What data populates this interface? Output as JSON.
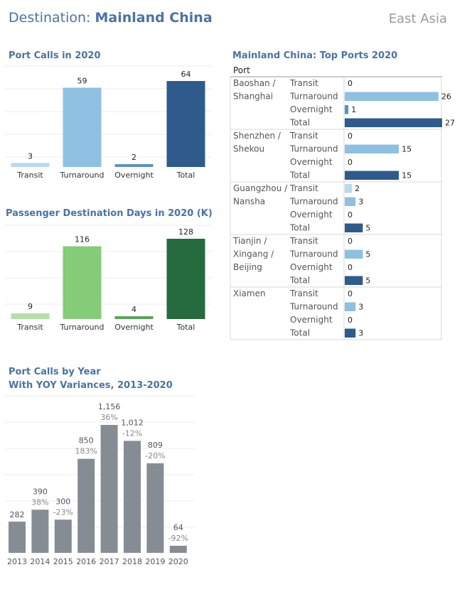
{
  "header": {
    "title_prefix": "Destination: ",
    "title_main": "Mainland China",
    "region": "East Asia"
  },
  "port_calls": {
    "title": "Port Calls in 2020",
    "chart_data": {
      "type": "bar",
      "categories": [
        "Transit",
        "Turnaround",
        "Overnight",
        "Total"
      ],
      "values": [
        3,
        59,
        2,
        64
      ],
      "colors": [
        "#b9d9ee",
        "#8fc0e2",
        "#5b93c0",
        "#2e5b8c"
      ]
    }
  },
  "pdd": {
    "title": "Passenger Destination Days in 2020 (K)",
    "chart_data": {
      "type": "bar",
      "categories": [
        "Transit",
        "Turnaround",
        "Overnight",
        "Total"
      ],
      "values": [
        9,
        116,
        4,
        128
      ],
      "colors": [
        "#b3dfaa",
        "#84cc77",
        "#5ba457",
        "#256b3d"
      ]
    }
  },
  "top_ports": {
    "title": "Mainland China: Top Ports 2020",
    "column_header": "Port",
    "chart_data": {
      "type": "bar",
      "categories": [
        "Transit",
        "Turnaround",
        "Overnight",
        "Total"
      ],
      "colors": [
        "#b9d9ee",
        "#8fc0e2",
        "#5b93c0",
        "#2e5b8c"
      ],
      "ports": [
        {
          "name": [
            "Baoshan /",
            "Shanghai"
          ],
          "values": [
            0,
            26,
            1,
            27
          ]
        },
        {
          "name": [
            "Shenzhen /",
            "Shekou"
          ],
          "values": [
            0,
            15,
            0,
            15
          ]
        },
        {
          "name": [
            "Guangzhou /",
            "Nansha"
          ],
          "values": [
            2,
            3,
            0,
            5
          ]
        },
        {
          "name": [
            "Tianjin /",
            "Xingang /",
            "Beijing"
          ],
          "values": [
            0,
            5,
            0,
            5
          ]
        },
        {
          "name": [
            "Xiamen"
          ],
          "values": [
            0,
            3,
            0,
            3
          ]
        }
      ]
    }
  },
  "by_year": {
    "title": "Port Calls by Year",
    "subtitle": "With YOY Variances, 2013-2020",
    "chart_data": {
      "type": "bar",
      "categories": [
        "2013",
        "2014",
        "2015",
        "2016",
        "2017",
        "2018",
        "2019",
        "2020"
      ],
      "values": [
        282,
        390,
        300,
        850,
        1156,
        1012,
        809,
        64
      ],
      "value_labels": [
        "282",
        "390",
        "300",
        "850",
        "1,156",
        "1,012",
        "809",
        "64"
      ],
      "yoy_labels": [
        "",
        "38%",
        "-23%",
        "183%",
        "36%",
        "-12%",
        "-20%",
        "-92%"
      ],
      "color": "#868c94"
    }
  }
}
